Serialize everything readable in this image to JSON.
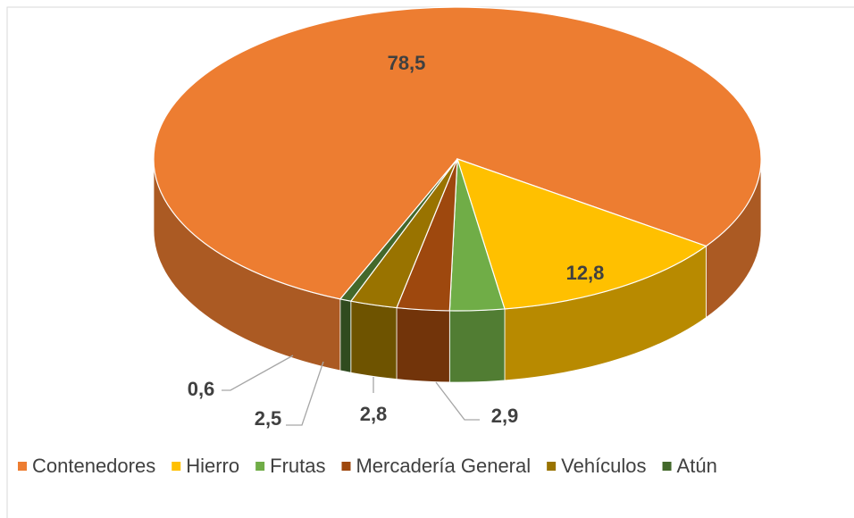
{
  "chart_data": {
    "type": "pie3d",
    "categories": [
      "Contenedores",
      "Hierro",
      "Frutas",
      "Mercadería General",
      "Vehículos",
      "Atún"
    ],
    "values": [
      78.5,
      12.8,
      2.9,
      2.8,
      2.5,
      0.6
    ],
    "value_labels": [
      "78,5",
      "12,8",
      "2,9",
      "2,8",
      "2,5",
      "0,6"
    ],
    "colors": [
      "#ED7D31",
      "#FFC000",
      "#70AD47",
      "#9E480E",
      "#997300",
      "#43682B"
    ],
    "legend": "bottom"
  }
}
